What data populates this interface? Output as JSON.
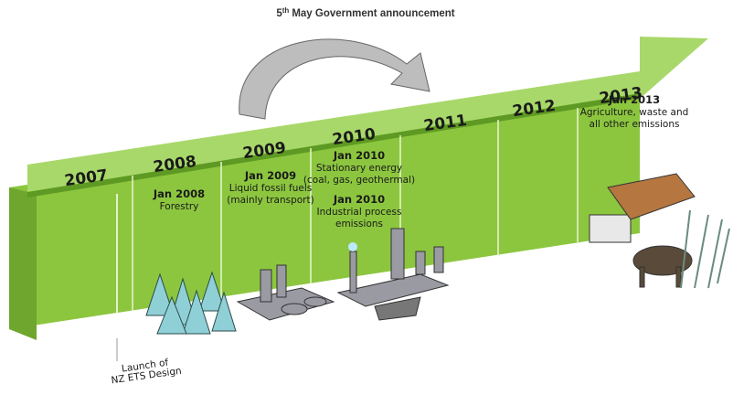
{
  "title": {
    "number": "5",
    "suffix": "th",
    "text": "May Government announcement"
  },
  "years": [
    "2007",
    "2008",
    "2009",
    "2010",
    "2011",
    "2012",
    "2013"
  ],
  "events": [
    {
      "date": "Jan 2008",
      "lines": [
        "Forestry"
      ]
    },
    {
      "date": "Jan 2009",
      "lines": [
        "Liquid fossil fuels",
        "(mainly transport)"
      ]
    },
    {
      "date": "Jan 2010",
      "lines": [
        "Stationary energy",
        "(coal, gas, geothermal)"
      ]
    },
    {
      "date": "Jan 2010",
      "lines": [
        "Industrial process",
        "emissions"
      ]
    },
    {
      "date": "Jan 2013",
      "lines": [
        "Agriculture, waste and",
        "all other emissions"
      ]
    }
  ],
  "launch": [
    "Launch of",
    "NZ ETS Design"
  ]
}
